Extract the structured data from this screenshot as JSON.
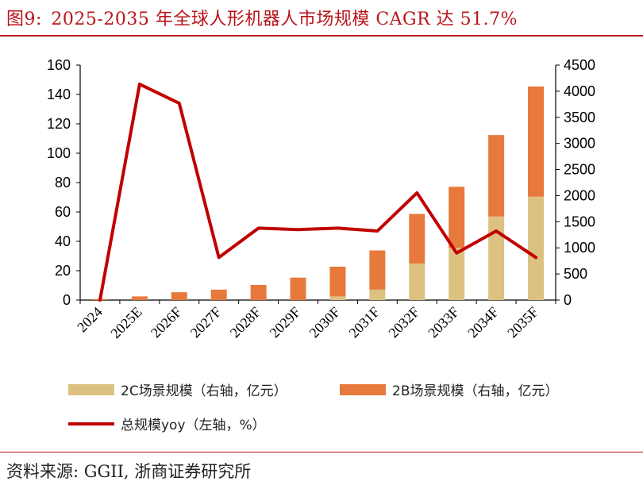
{
  "header": {
    "figure_label": "图9:",
    "title": "2025-2035 年全球人形机器人市场规模 CAGR 达 51.7%"
  },
  "footer": {
    "source": "资料来源: GGII, 浙商证券研究所"
  },
  "colors": {
    "bar_2c": "#dcc181",
    "bar_2b": "#e8793c",
    "line_total_yoy": "#c00000",
    "title_red": "#b8141b",
    "axis": "#000000"
  },
  "chart_data": {
    "type": "bar",
    "stacked": true,
    "title": "2025-2035 年全球人形机器人市场规模 CAGR 达 51.7%",
    "categories": [
      "2024",
      "2025E",
      "2026F",
      "2027F",
      "2028F",
      "2029F",
      "2030F",
      "2031F",
      "2032F",
      "2033F",
      "2034F",
      "2035F"
    ],
    "y_left": {
      "min": 0,
      "max": 160,
      "ticks": [
        0,
        20,
        40,
        60,
        80,
        100,
        120,
        140,
        160
      ]
    },
    "y_right": {
      "min": 0,
      "max": 4500,
      "ticks": [
        0,
        500,
        1000,
        1500,
        2000,
        2500,
        3000,
        3500,
        4000,
        4500
      ]
    },
    "series": [
      {
        "name": "2C场景规模（右轴，亿元）",
        "type": "bar",
        "axis": "right",
        "color": "#dcc181",
        "values": [
          0,
          0,
          0,
          0,
          0,
          0,
          70,
          200,
          700,
          1000,
          1600,
          1980
        ]
      },
      {
        "name": "2B场景规模（右轴，亿元）",
        "type": "bar",
        "axis": "right",
        "color": "#e8793c",
        "values": [
          20,
          70,
          150,
          200,
          290,
          430,
          570,
          750,
          950,
          1170,
          1560,
          2110
        ]
      },
      {
        "name": "总规模yoy（左轴，%）",
        "type": "line",
        "axis": "left",
        "color": "#c00000",
        "values": [
          0,
          147,
          134,
          29,
          49,
          48,
          49,
          47,
          73,
          32,
          47,
          29
        ]
      }
    ],
    "legend": {
      "bar_2c_label": "2C场景规模（右轴，亿元）",
      "bar_2b_label": "2B场景规模（右轴，亿元）",
      "line_label": "总规模yoy（左轴，%）",
      "placement": "bottom"
    }
  }
}
